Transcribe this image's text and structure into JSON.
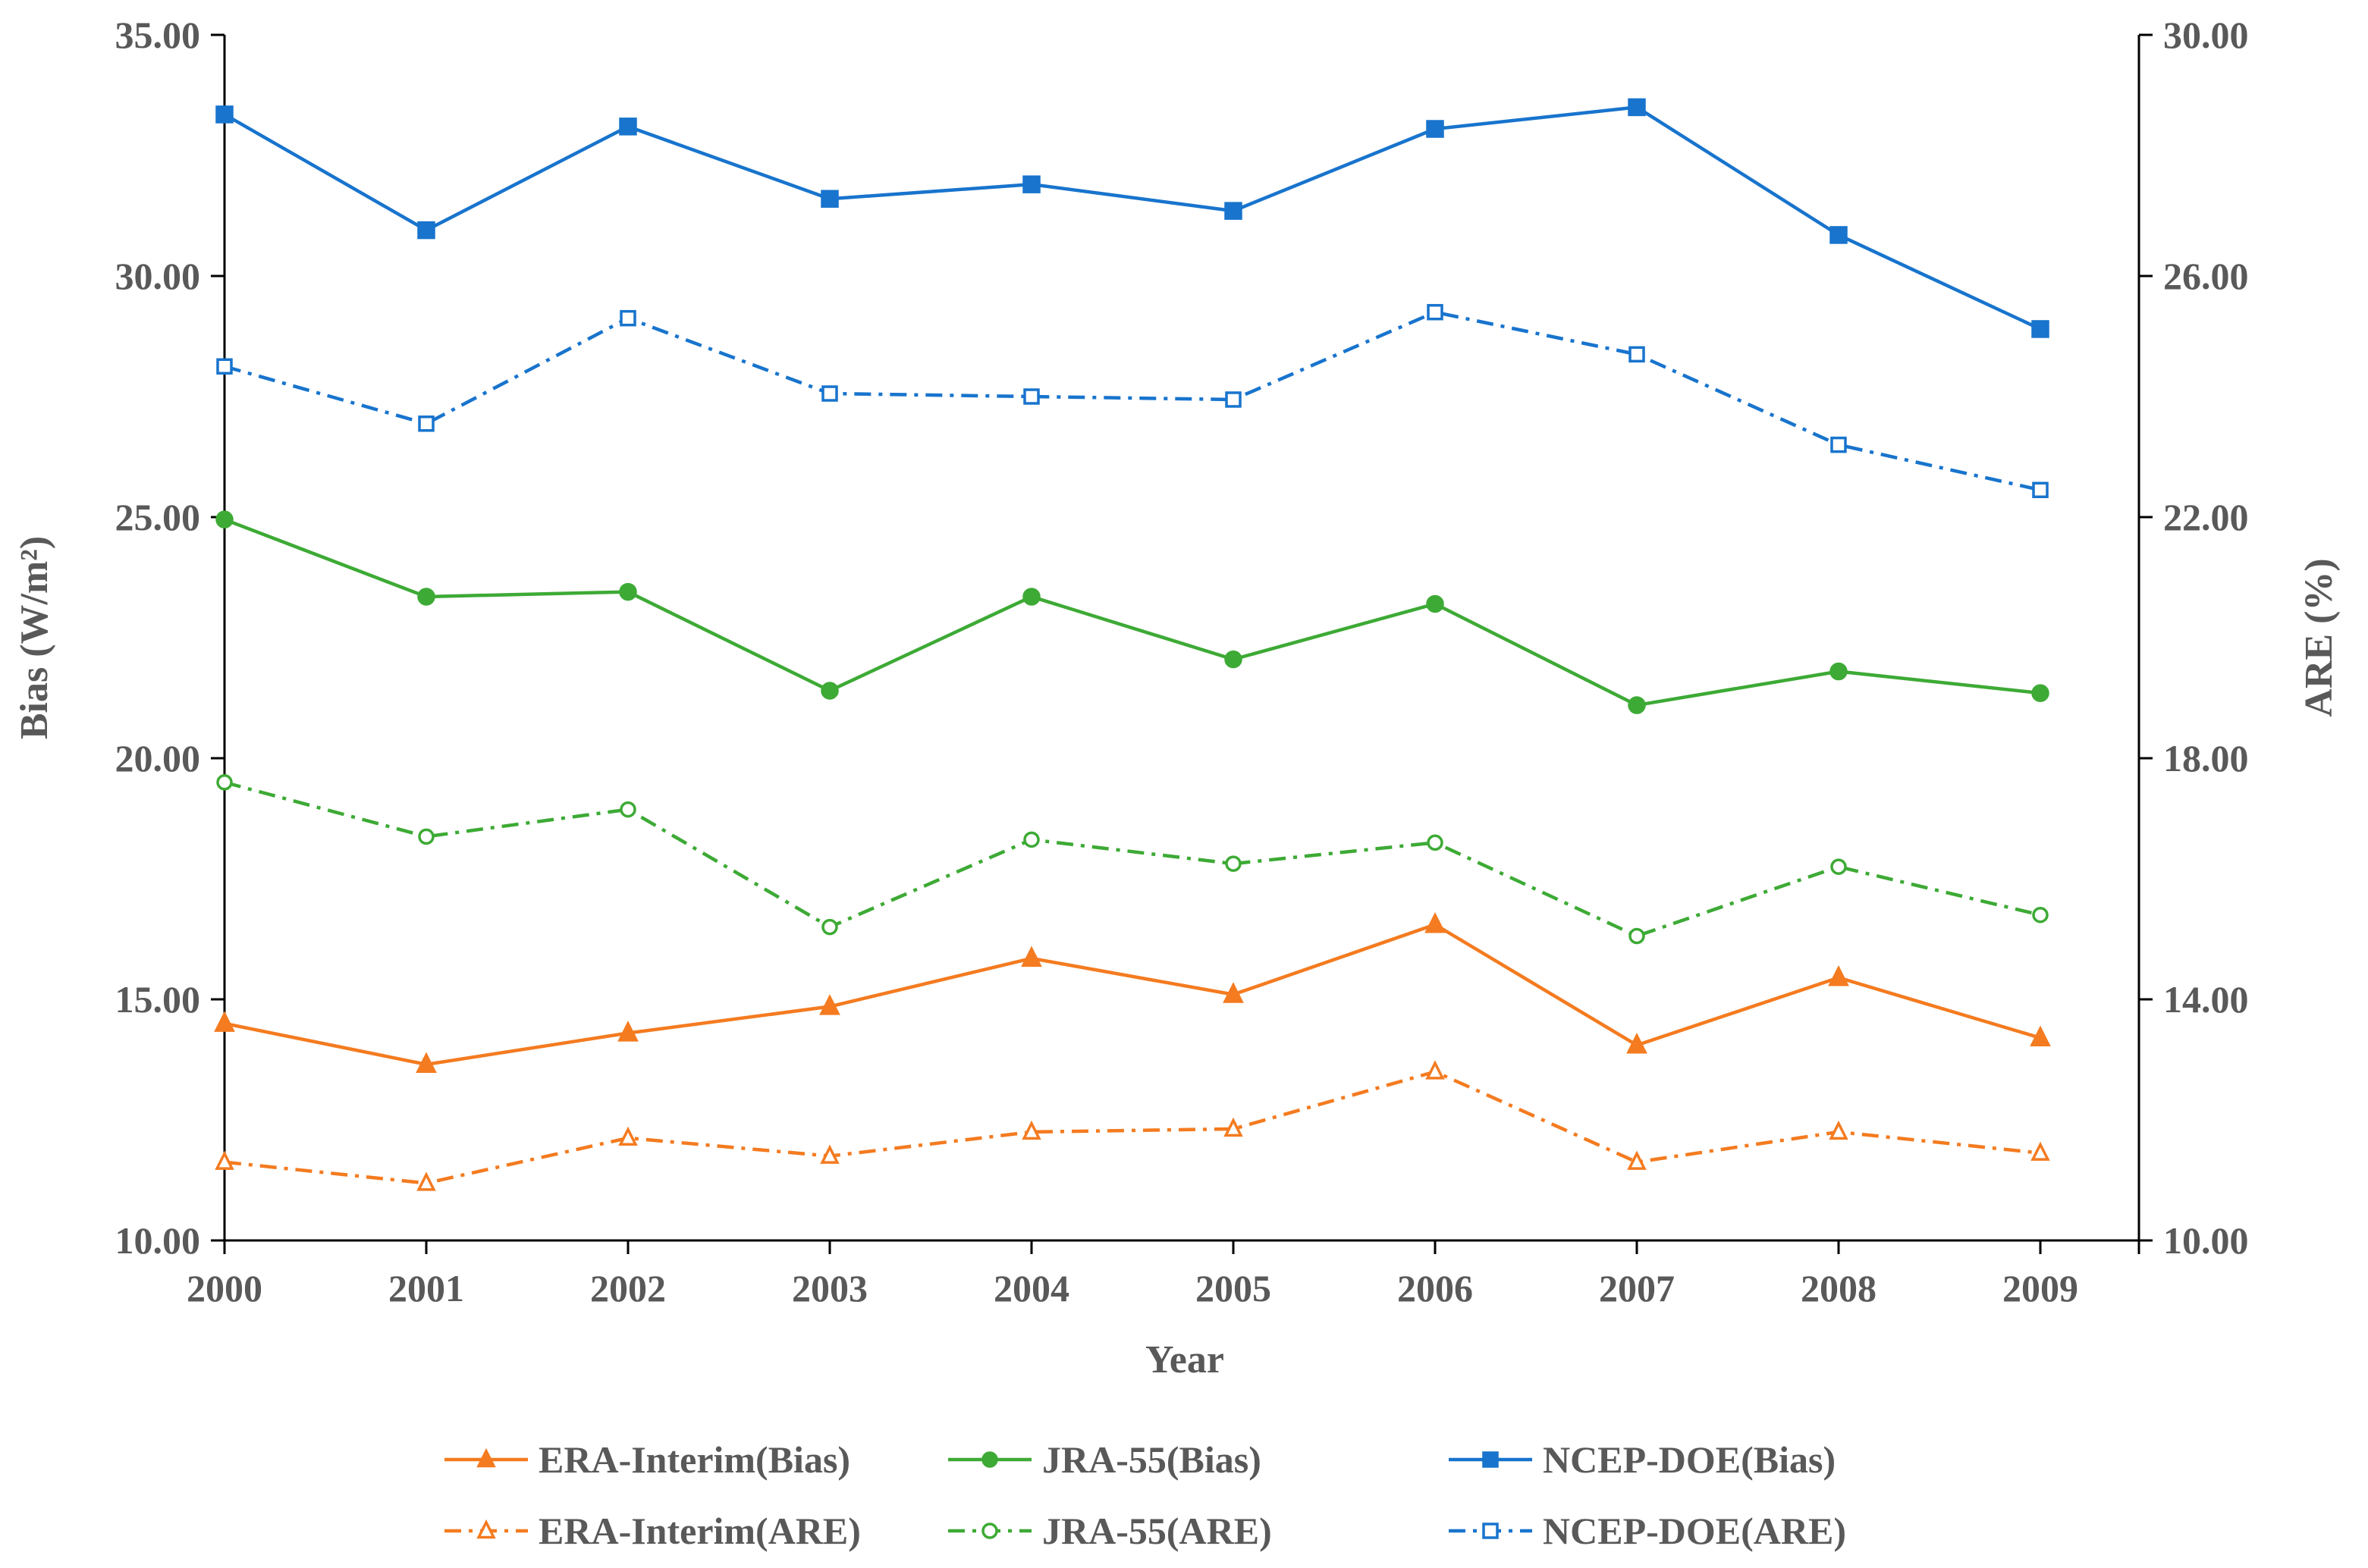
{
  "chart_data": {
    "type": "line",
    "title": "",
    "x": [
      "2000",
      "2001",
      "2002",
      "2003",
      "2004",
      "2005",
      "2006",
      "2007",
      "2008",
      "2009"
    ],
    "xlabel": "Year",
    "ylabel": "Bias (W/m²)",
    "y2label": "ARE (%)",
    "ylim": [
      10,
      35
    ],
    "y2lim": [
      10,
      30
    ],
    "yticks": [
      "10.00",
      "15.00",
      "20.00",
      "25.00",
      "30.00",
      "35.00"
    ],
    "y2ticks": [
      "10.00",
      "14.00",
      "18.00",
      "22.00",
      "26.00",
      "30.00"
    ],
    "grid": false,
    "legend_position": "bottom",
    "series": [
      {
        "name": "ERA-Interim(Bias)",
        "axis": "left",
        "color": "#F47B20",
        "dash": "solid",
        "marker": "triangle",
        "filled": true,
        "values": [
          14.5,
          13.65,
          14.3,
          14.85,
          15.85,
          15.1,
          16.55,
          14.05,
          15.45,
          14.2
        ]
      },
      {
        "name": "JRA-55(Bias)",
        "axis": "left",
        "color": "#3DAA35",
        "dash": "solid",
        "marker": "circle",
        "filled": true,
        "values": [
          24.95,
          23.35,
          23.45,
          21.4,
          23.35,
          22.05,
          23.2,
          21.1,
          21.8,
          21.35
        ]
      },
      {
        "name": "NCEP-DOE(Bias)",
        "axis": "left",
        "color": "#1874CD",
        "dash": "solid",
        "marker": "square",
        "filled": true,
        "values": [
          33.35,
          30.95,
          33.1,
          31.6,
          31.9,
          31.35,
          33.05,
          33.5,
          30.85,
          28.9
        ]
      },
      {
        "name": "ERA-Interim(ARE)",
        "axis": "right",
        "color": "#F47B20",
        "dash": "dashdot",
        "marker": "triangle",
        "filled": false,
        "values": [
          11.3,
          10.95,
          11.7,
          11.4,
          11.8,
          11.85,
          12.8,
          11.3,
          11.8,
          11.45
        ]
      },
      {
        "name": "JRA-55(ARE)",
        "axis": "right",
        "color": "#3DAA35",
        "dash": "dashdot",
        "marker": "circle",
        "filled": false,
        "values": [
          17.6,
          16.7,
          17.15,
          15.2,
          16.65,
          16.25,
          16.6,
          15.05,
          16.2,
          15.4
        ]
      },
      {
        "name": "NCEP-DOE(ARE)",
        "axis": "right",
        "color": "#1874CD",
        "dash": "dashdot",
        "marker": "square",
        "filled": false,
        "values": [
          24.5,
          23.55,
          25.3,
          24.05,
          24.0,
          23.95,
          25.4,
          24.7,
          23.2,
          22.45
        ]
      }
    ]
  }
}
